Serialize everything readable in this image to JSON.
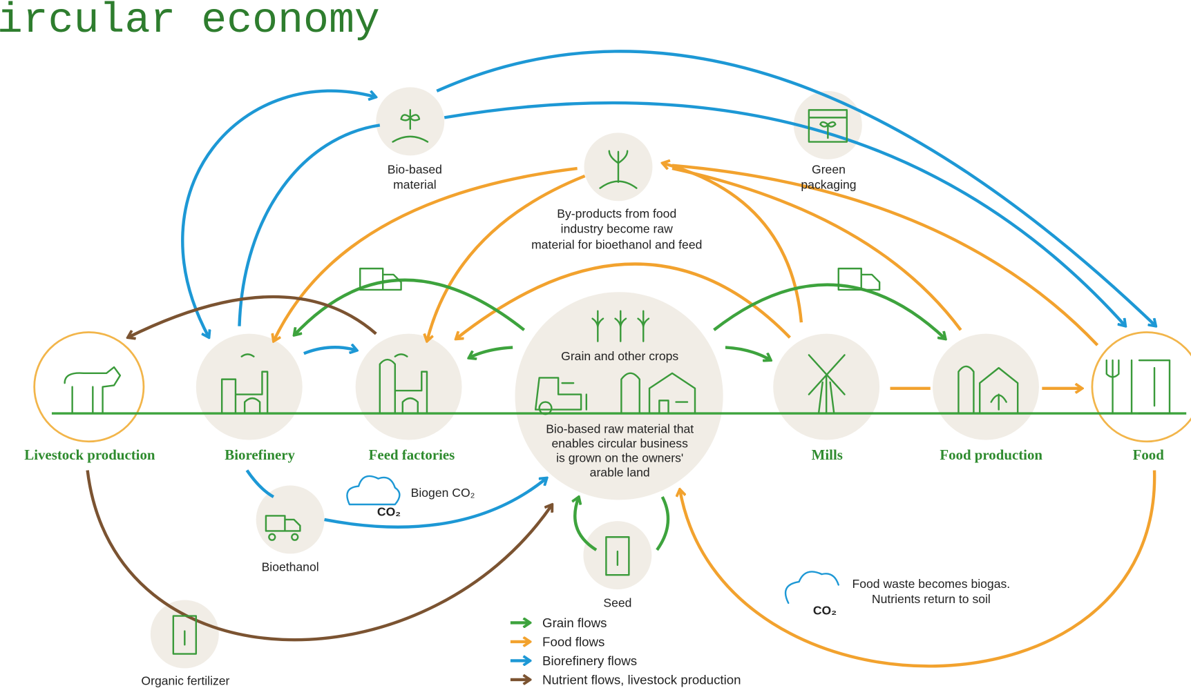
{
  "title": "ircular economy",
  "stages": [
    "Livestock production",
    "Biorefinery",
    "Feed factories",
    "Mills",
    "Food production",
    "Food"
  ],
  "resources": [
    {
      "label": [
        "Bio-based",
        "material"
      ]
    },
    {
      "label": [
        "Green",
        "packaging"
      ]
    },
    {
      "label": [
        "By-products from food",
        "industry become raw",
        "material for bioethanol and feed"
      ]
    },
    {
      "label": [
        "Bioethanol"
      ]
    },
    {
      "label": [
        "Seed"
      ]
    },
    {
      "label": [
        "Organic fertilizer"
      ]
    }
  ],
  "center": {
    "title": "Grain and other crops",
    "description": [
      "Bio-based raw material that",
      "enables circular business",
      "is grown on the owners'",
      "arable land"
    ]
  },
  "notes": [
    {
      "cloud": "CO₂",
      "text": [
        "Biogen CO₂"
      ]
    },
    {
      "cloud": "CO₂",
      "text": [
        "Food waste becomes biogas.",
        "Nutrients return to soil"
      ]
    }
  ],
  "legend": [
    "Grain flows",
    "Food flows",
    "Biorefinery flows",
    "Nutrient flows, livestock production"
  ]
}
